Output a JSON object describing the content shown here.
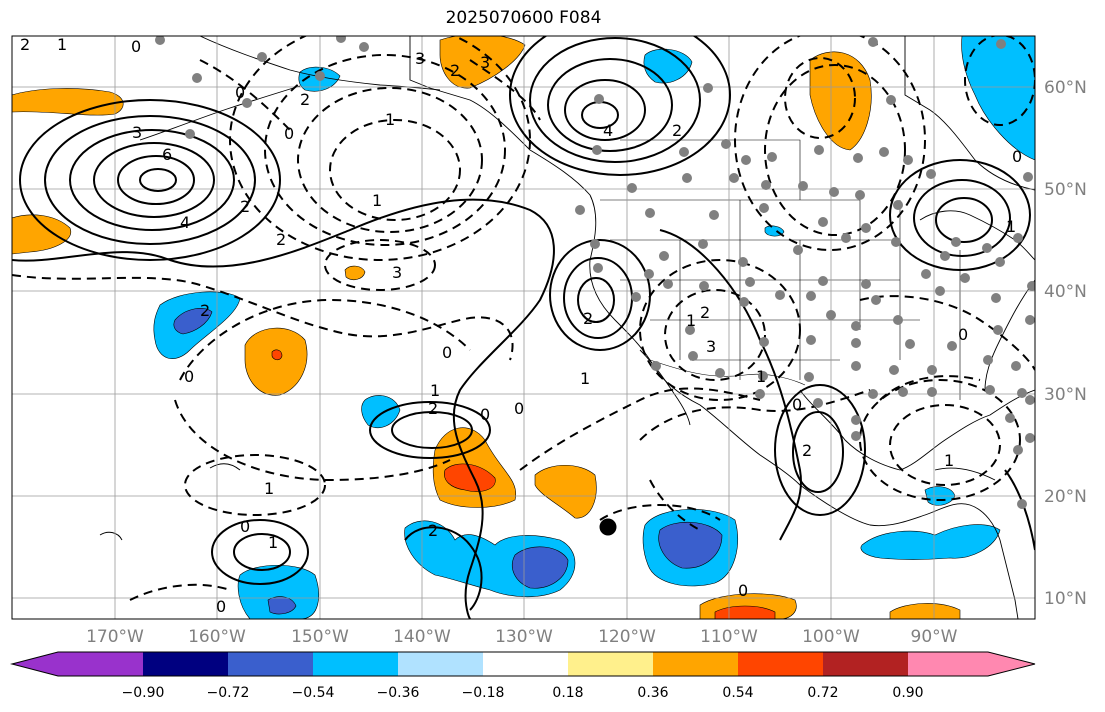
{
  "title": "2025070600 F084",
  "lat_labels": [
    "60°N",
    "50°N",
    "40°N",
    "30°N",
    "20°N",
    "10°N"
  ],
  "lon_labels": [
    "170°W",
    "160°W",
    "150°W",
    "140°W",
    "130°W",
    "120°W",
    "110°W",
    "100°W",
    "90°W"
  ],
  "colorbar": {
    "colors": [
      "#9932cc",
      "#000080",
      "#3a5fcd",
      "#00bfff",
      "#b0e2ff",
      "#ffffff",
      "#fff08c",
      "#ffa500",
      "#ff4500",
      "#b22222",
      "#ff88b0"
    ],
    "labels": [
      "−0.90",
      "−0.72",
      "−0.54",
      "−0.36",
      "−0.18",
      "0.18",
      "0.36",
      "0.54",
      "0.72",
      "0.90"
    ]
  },
  "contour_labels": [
    "2",
    "1",
    "0",
    "3",
    "2",
    "3",
    "0",
    "1",
    "2",
    "3",
    "4",
    "2",
    "6",
    "4",
    "2",
    "1",
    "0",
    "2",
    "3",
    "2",
    "2",
    "0",
    "1",
    "2",
    "0",
    "1",
    "0",
    "1",
    "2",
    "3",
    "0",
    "1",
    "0",
    "2",
    "1",
    "0",
    "1",
    "0",
    "2",
    "0",
    "1",
    "0",
    "1",
    "0"
  ],
  "fill_colors": {
    "cyan": "#00bfff",
    "blue": "#3a5fcd",
    "orange": "#ffa500",
    "red": "#ff4500",
    "marker": "#808080"
  }
}
